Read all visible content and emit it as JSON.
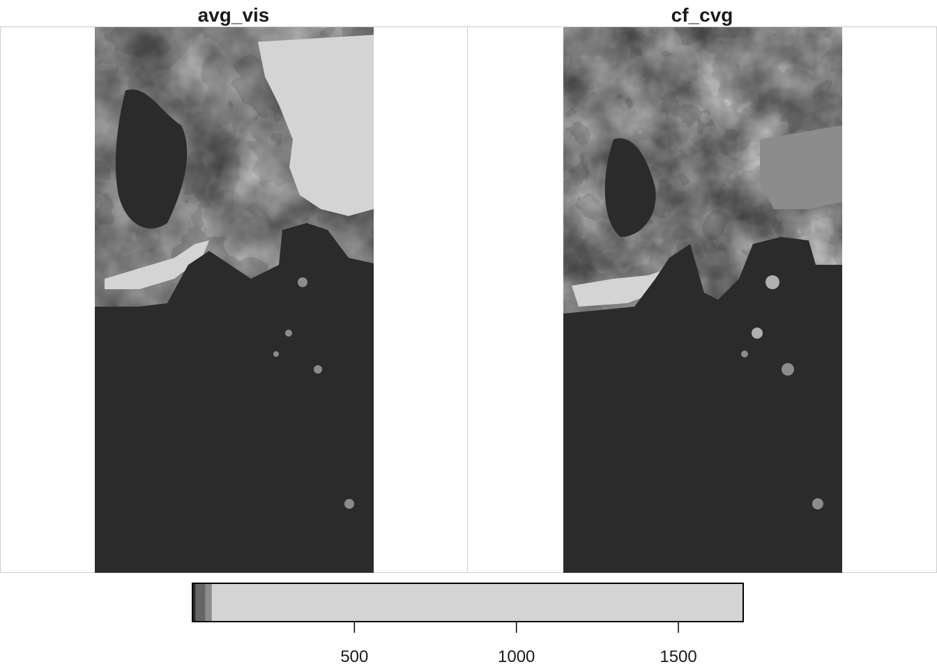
{
  "chart_data": [
    {
      "type": "heatmap",
      "title": "avg_vis",
      "palette": [
        "#2b2b2b",
        "#666666",
        "#8c8c8c",
        "#b0b0b0",
        "#d4d4d4"
      ]
    },
    {
      "type": "heatmap",
      "title": "cf_cvg",
      "palette": [
        "#2b2b2b",
        "#666666",
        "#8c8c8c",
        "#b0b0b0",
        "#d4d4d4"
      ]
    }
  ],
  "legend": {
    "type": "colorbar",
    "range": [
      0,
      1700
    ],
    "ticks": [
      {
        "value": 500,
        "label": "500"
      },
      {
        "value": 1000,
        "label": "1000"
      },
      {
        "value": 1500,
        "label": "1500"
      }
    ],
    "bands": [
      {
        "from": 0,
        "to": 10,
        "color": "#2b2b2b"
      },
      {
        "from": 10,
        "to": 40,
        "color": "#666666"
      },
      {
        "from": 40,
        "to": 60,
        "color": "#8c8c8c"
      },
      {
        "from": 60,
        "to": 1700,
        "color": "#d4d4d4"
      }
    ]
  }
}
